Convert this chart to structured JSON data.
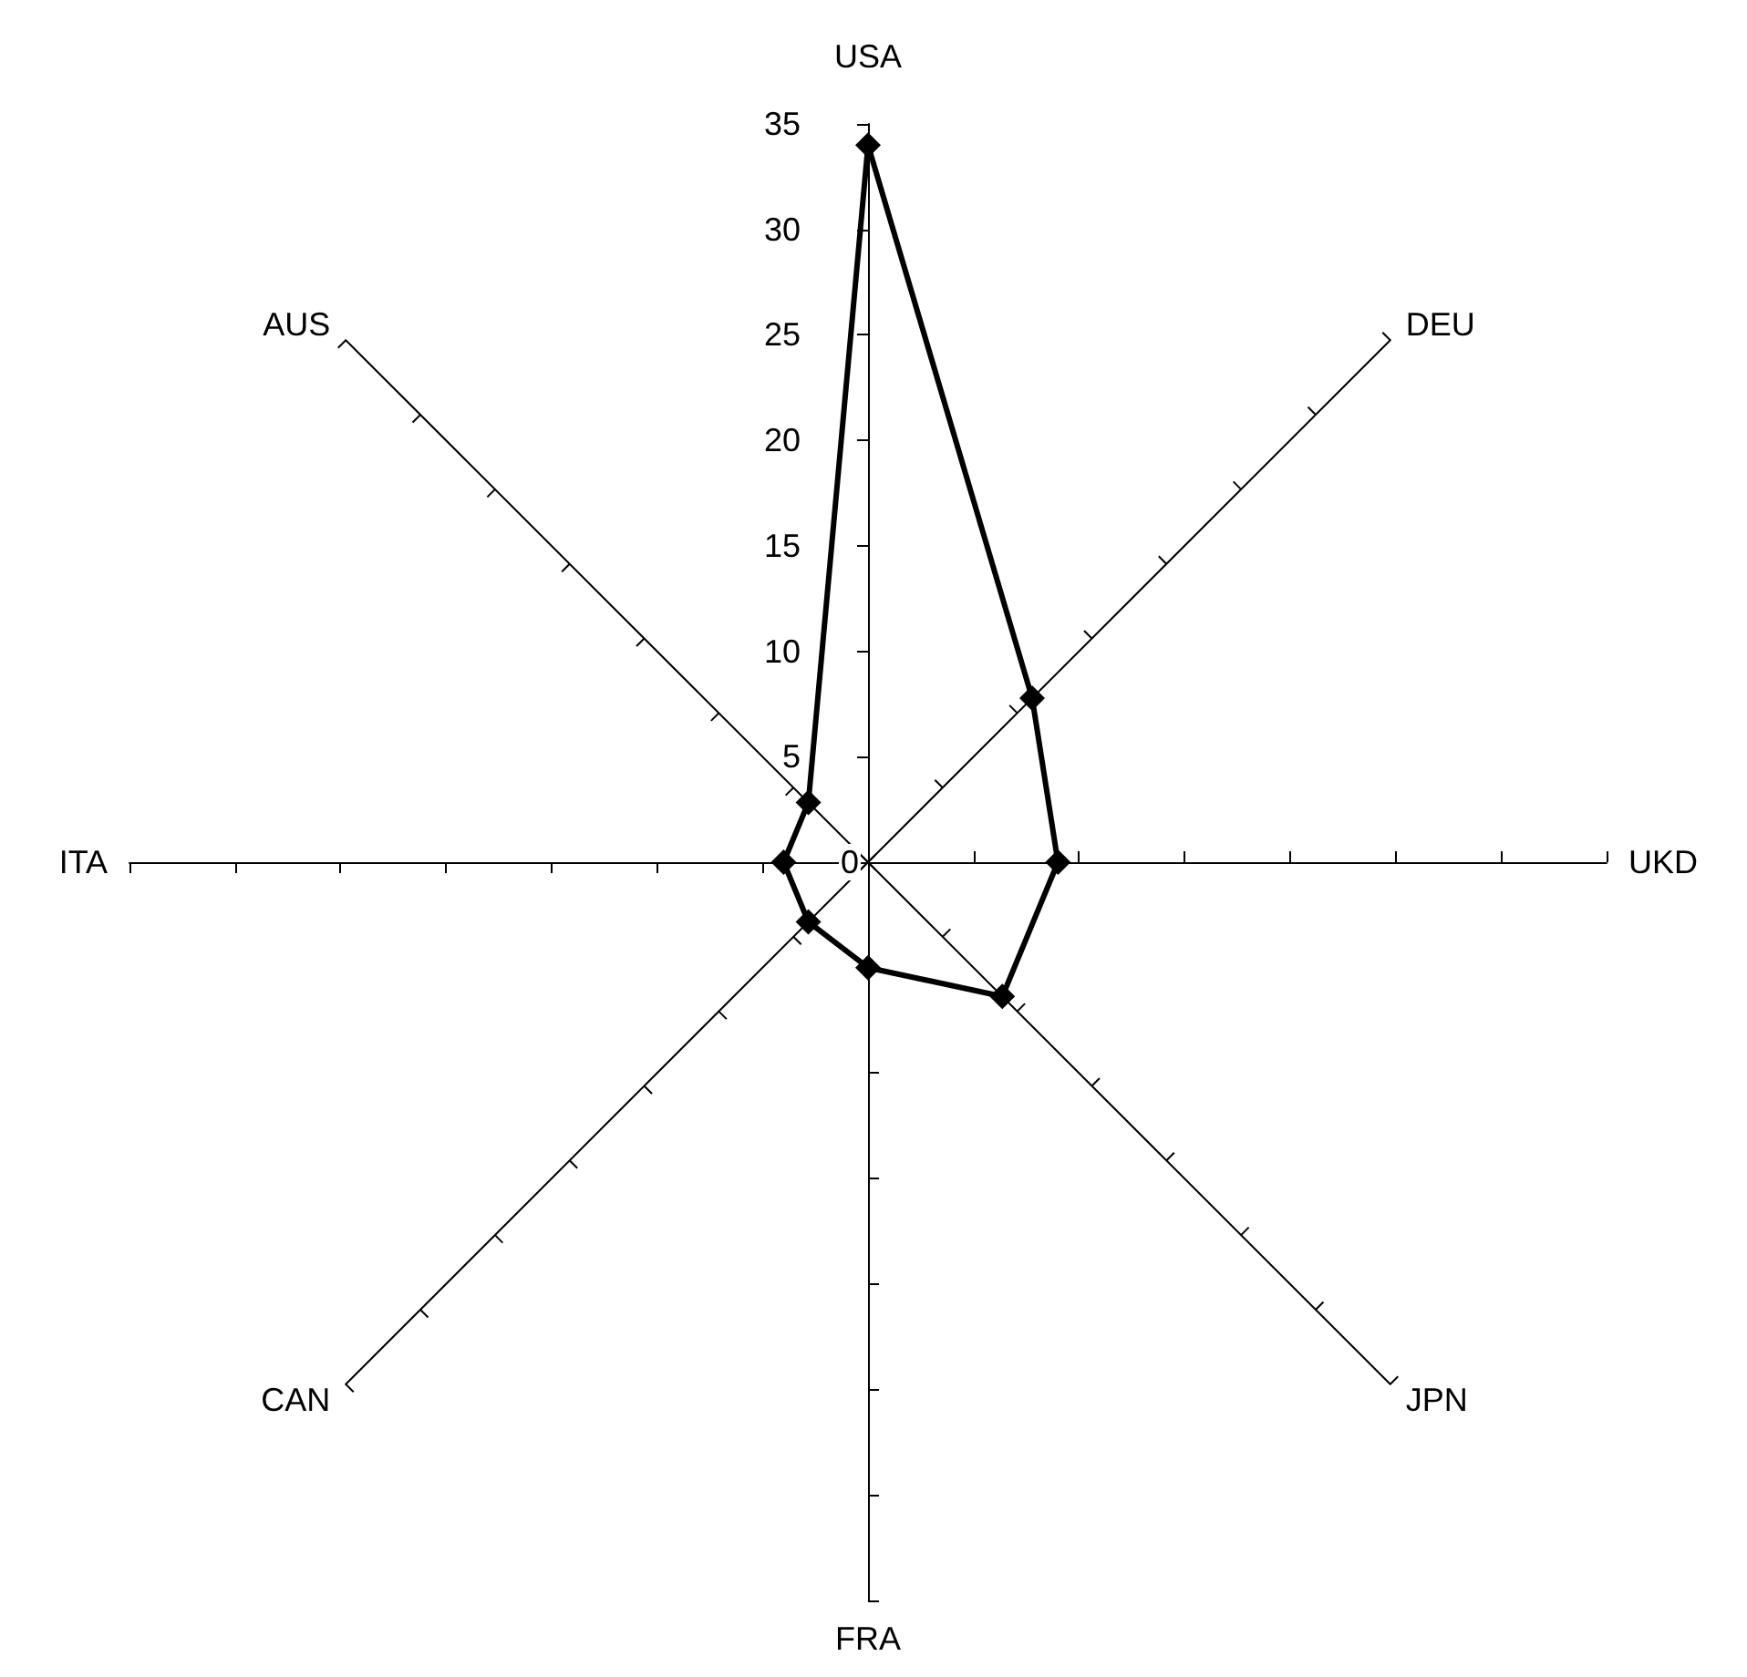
{
  "chart_data": {
    "type": "radar",
    "categories": [
      "USA",
      "DEU",
      "UKD",
      "JPN",
      "FRA",
      "CAN",
      "ITA",
      "AUS"
    ],
    "series": [
      {
        "color": "#000000",
        "values": [
          34,
          11,
          9,
          9,
          5,
          4,
          4,
          4
        ]
      }
    ],
    "ylim": [
      0,
      35
    ],
    "yticks": [
      0,
      5,
      10,
      15,
      20,
      25,
      30,
      35
    ],
    "grid": false,
    "marker": "diamond",
    "line_style": "solid"
  }
}
